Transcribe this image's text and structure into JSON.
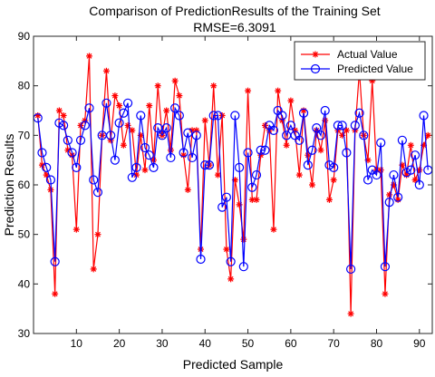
{
  "chart_data": {
    "type": "line",
    "title": "Comparison of PredictionResults of the Training Set",
    "subtitle": "RMSE=6.3091",
    "xlabel": "Predicted Sample",
    "ylabel": "Prediction Results",
    "xlim": [
      0,
      93
    ],
    "ylim": [
      30,
      90
    ],
    "xticks": [
      10,
      20,
      30,
      40,
      50,
      60,
      70,
      80,
      90
    ],
    "yticks": [
      30,
      40,
      50,
      60,
      70,
      80,
      90
    ],
    "grid": false,
    "legend_position": "top-right",
    "series": [
      {
        "name": "Actual Value",
        "color": "#ff0000",
        "marker": "asterisk",
        "values": [
          74,
          64,
          62,
          59,
          38,
          75,
          74,
          67,
          66,
          51,
          72,
          73,
          86,
          43,
          50,
          70,
          83,
          69,
          78,
          76,
          68,
          72,
          71,
          62,
          70,
          63,
          76,
          65,
          80,
          70,
          75,
          67,
          81,
          78,
          66,
          59,
          71,
          71,
          47,
          73,
          64,
          80,
          62,
          74,
          47,
          41,
          61,
          56,
          49,
          79,
          57,
          57,
          66,
          72,
          71,
          51,
          79,
          73,
          68,
          77,
          71,
          62,
          75,
          66,
          60,
          71,
          67,
          73,
          57,
          61,
          71,
          70,
          71,
          34,
          71,
          83,
          70,
          65,
          81,
          63,
          63,
          38,
          58,
          60,
          57,
          64,
          62,
          68,
          61,
          63,
          68,
          70
        ]
      },
      {
        "name": "Predicted Value",
        "color": "#0000ff",
        "marker": "circle",
        "values": [
          73.5,
          66.5,
          63.5,
          61,
          44.5,
          72.5,
          72,
          69,
          66.5,
          63.5,
          69,
          72,
          75.5,
          61,
          58.5,
          70,
          76.5,
          70,
          65,
          72.5,
          74.5,
          76.5,
          61.5,
          63.5,
          74,
          67.5,
          66,
          63.5,
          71.5,
          70,
          71.5,
          65.5,
          75.5,
          74,
          66.5,
          70.5,
          65.5,
          70,
          45,
          64,
          64,
          74,
          74,
          55.5,
          57.5,
          44.5,
          74,
          63.5,
          43.5,
          66.5,
          59.5,
          62,
          67,
          67,
          72,
          71,
          75,
          74,
          70,
          72,
          70,
          69,
          74.5,
          64,
          67,
          71.5,
          70,
          75,
          64,
          63.5,
          72,
          72,
          66.5,
          43,
          72,
          74.5,
          70,
          61,
          63,
          62,
          68.5,
          43.5,
          56.5,
          62,
          57.5,
          69,
          62.5,
          63,
          66,
          60,
          74,
          63
        ]
      }
    ]
  }
}
